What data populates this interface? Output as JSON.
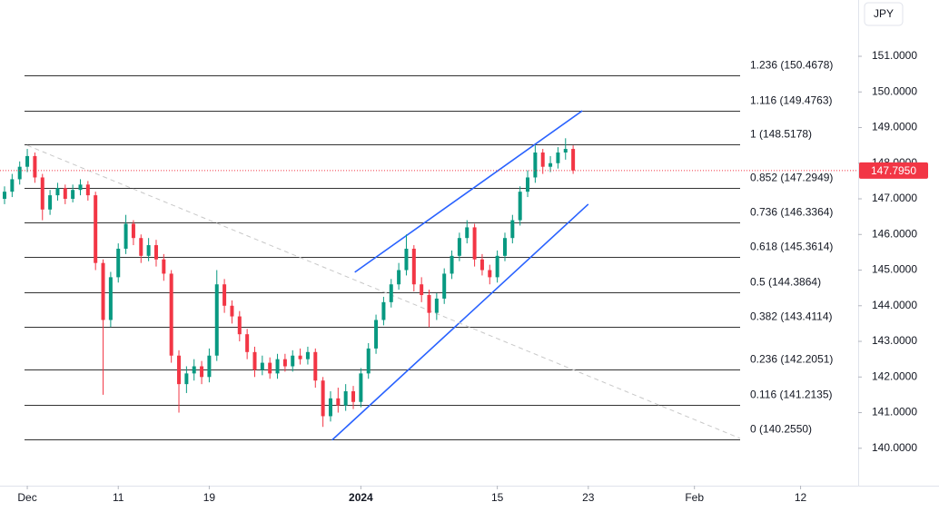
{
  "chart_data": {
    "type": "candlestick",
    "currency": "JPY",
    "x": [
      -1.5,
      -1.0,
      -0.5,
      0.0,
      0.5,
      1.0,
      1.5,
      2.0,
      2.5,
      3.0,
      3.5,
      4.0,
      4.5,
      5.0,
      5.5,
      6.0,
      6.5,
      7.0,
      7.5,
      8.0,
      8.5,
      9.0,
      9.5,
      10.0,
      10.5,
      11.0,
      11.5,
      12.0,
      12.5,
      13.0,
      13.5,
      14.0,
      14.5,
      15.0,
      15.5,
      16.0,
      16.5,
      17.0,
      17.5,
      18.0,
      18.5,
      19.0,
      19.5,
      20.0,
      20.5,
      21.0,
      21.5,
      22.0,
      22.5,
      23.0,
      23.5,
      24.0,
      24.5,
      25.0,
      25.5,
      26.0,
      26.5,
      27.0,
      27.5,
      28.0,
      28.5,
      29.0,
      29.5,
      30.0,
      30.5,
      31.0,
      31.5,
      32.0,
      32.5,
      33.0,
      33.5,
      34.0,
      34.5,
      35.0,
      35.5,
      36.0
    ],
    "open": [
      147.0,
      147.2,
      147.55,
      147.9,
      148.2,
      147.6,
      146.7,
      147.1,
      147.3,
      147.0,
      147.25,
      147.4,
      147.1,
      145.2,
      143.6,
      144.8,
      145.6,
      146.3,
      145.9,
      145.4,
      145.7,
      145.3,
      144.9,
      142.6,
      141.8,
      142.1,
      142.3,
      142.0,
      142.6,
      144.6,
      144.0,
      143.7,
      143.2,
      142.7,
      142.2,
      142.4,
      142.1,
      142.5,
      142.3,
      142.6,
      142.5,
      142.7,
      141.9,
      140.9,
      141.4,
      141.2,
      141.6,
      141.3,
      142.1,
      142.8,
      143.6,
      144.1,
      144.6,
      145.0,
      145.6,
      144.6,
      144.3,
      143.8,
      144.2,
      144.9,
      145.4,
      145.9,
      146.2,
      145.3,
      145.0,
      144.8,
      145.4,
      145.9,
      146.4,
      147.2,
      147.6,
      148.3,
      147.9,
      148.0,
      148.3,
      148.4
    ],
    "high": [
      147.35,
      147.7,
      148.05,
      148.4,
      148.3,
      147.7,
      147.25,
      147.45,
      147.4,
      147.4,
      147.55,
      147.5,
      147.2,
      145.3,
      144.95,
      145.75,
      146.55,
      146.4,
      146.0,
      145.9,
      145.85,
      145.45,
      145.0,
      142.75,
      142.3,
      142.5,
      142.45,
      142.8,
      145.0,
      144.75,
      144.15,
      143.85,
      143.35,
      142.85,
      142.6,
      142.55,
      142.65,
      142.65,
      142.75,
      142.8,
      142.85,
      142.8,
      142.0,
      141.6,
      141.7,
      141.8,
      141.75,
      142.25,
      142.95,
      143.75,
      144.25,
      144.75,
      145.2,
      146.0,
      145.7,
      144.8,
      144.45,
      144.35,
      145.05,
      145.55,
      146.05,
      146.4,
      146.3,
      145.45,
      145.15,
      145.55,
      146.05,
      146.55,
      147.35,
      147.8,
      148.5,
      148.4,
      148.2,
      148.45,
      148.7,
      148.5
    ],
    "low": [
      146.85,
      147.05,
      147.4,
      147.75,
      147.45,
      146.4,
      146.55,
      146.95,
      146.85,
      146.9,
      147.1,
      146.95,
      145.0,
      141.5,
      143.4,
      144.65,
      145.45,
      145.7,
      145.2,
      145.25,
      145.1,
      144.7,
      142.4,
      141.0,
      141.55,
      141.9,
      141.8,
      141.85,
      142.45,
      143.8,
      143.5,
      143.0,
      142.5,
      142.0,
      142.05,
      141.95,
      141.95,
      142.15,
      142.15,
      142.35,
      142.35,
      141.7,
      140.6,
      140.75,
      141.0,
      141.05,
      141.1,
      141.15,
      141.95,
      142.65,
      143.45,
      143.95,
      144.45,
      144.85,
      144.4,
      144.1,
      143.4,
      143.6,
      144.05,
      144.75,
      145.25,
      145.75,
      145.1,
      144.85,
      144.6,
      144.65,
      145.25,
      145.75,
      146.25,
      147.05,
      147.45,
      147.7,
      147.75,
      147.85,
      148.1,
      147.7
    ],
    "close": [
      147.2,
      147.55,
      147.9,
      148.2,
      147.6,
      146.7,
      147.1,
      147.3,
      147.0,
      147.25,
      147.4,
      147.1,
      145.2,
      143.6,
      144.8,
      145.6,
      146.3,
      145.9,
      145.4,
      145.7,
      145.3,
      144.9,
      142.6,
      141.8,
      142.1,
      142.3,
      142.0,
      142.6,
      144.6,
      144.0,
      143.7,
      143.2,
      142.7,
      142.2,
      142.4,
      142.1,
      142.5,
      142.3,
      142.6,
      142.5,
      142.7,
      141.9,
      140.9,
      141.4,
      141.2,
      141.6,
      141.3,
      142.1,
      142.8,
      143.6,
      144.1,
      144.6,
      145.0,
      145.6,
      144.6,
      144.3,
      143.8,
      144.2,
      144.9,
      145.4,
      145.9,
      146.2,
      145.3,
      145.0,
      144.8,
      145.4,
      145.9,
      146.4,
      147.2,
      147.6,
      148.3,
      147.9,
      148.0,
      148.3,
      148.4,
      147.795
    ],
    "up_color": "#089981",
    "down_color": "#f23645",
    "last_price_label": "147.7950",
    "xlim": [
      -1.8,
      54.5
    ],
    "ylim": [
      138.95,
      152.58
    ],
    "xticks": [
      {
        "value": 0,
        "label": "Dec"
      },
      {
        "value": 6,
        "label": "11"
      },
      {
        "value": 12,
        "label": "19"
      },
      {
        "value": 22,
        "label": "2024"
      },
      {
        "value": 31,
        "label": "15"
      },
      {
        "value": 37,
        "label": "23"
      },
      {
        "value": 44,
        "label": "Feb"
      },
      {
        "value": 51,
        "label": "12"
      }
    ],
    "yticks": [
      {
        "value": 140,
        "label": "140.0000"
      },
      {
        "value": 141,
        "label": "141.0000"
      },
      {
        "value": 142,
        "label": "142.0000"
      },
      {
        "value": 143,
        "label": "143.0000"
      },
      {
        "value": 144,
        "label": "144.0000"
      },
      {
        "value": 145,
        "label": "145.0000"
      },
      {
        "value": 146,
        "label": "146.0000"
      },
      {
        "value": 147,
        "label": "147.0000"
      },
      {
        "value": 148,
        "label": "148.0000"
      },
      {
        "value": 149,
        "label": "149.0000"
      },
      {
        "value": 150,
        "label": "150.0000"
      },
      {
        "value": 151,
        "label": "151.0000"
      }
    ],
    "fib_levels": [
      {
        "label": "1.236 (150.4678)",
        "price": 150.4678
      },
      {
        "label": "1.116 (149.4763)",
        "price": 149.4763
      },
      {
        "label": "1 (148.5178)",
        "price": 148.5178
      },
      {
        "label": "0.852 (147.2949)",
        "price": 147.2949
      },
      {
        "label": "0.736 (146.3364)",
        "price": 146.3364
      },
      {
        "label": "0.618 (145.3614)",
        "price": 145.3614
      },
      {
        "label": "0.5 (144.3864)",
        "price": 144.3864
      },
      {
        "label": "0.382 (143.4114)",
        "price": 143.4114
      },
      {
        "label": "0.236 (142.2051)",
        "price": 142.2051
      },
      {
        "label": "0.116 (141.2135)",
        "price": 141.2135
      },
      {
        "label": "0 (140.2550)",
        "price": 140.255
      }
    ],
    "fib_color": "#333333",
    "trendlines": [
      {
        "x": [
          21.6,
          36.6
        ],
        "y": [
          144.94,
          149.47
        ],
        "color": "#2962ff",
        "dashed": false
      },
      {
        "x": [
          20.1,
          37.0
        ],
        "y": [
          140.23,
          146.85
        ],
        "color": "#2962ff",
        "dashed": false
      },
      {
        "x": [
          0.0,
          47.0
        ],
        "y": [
          148.5,
          140.28
        ],
        "color": "#c8c8c8",
        "dashed": true
      }
    ]
  }
}
